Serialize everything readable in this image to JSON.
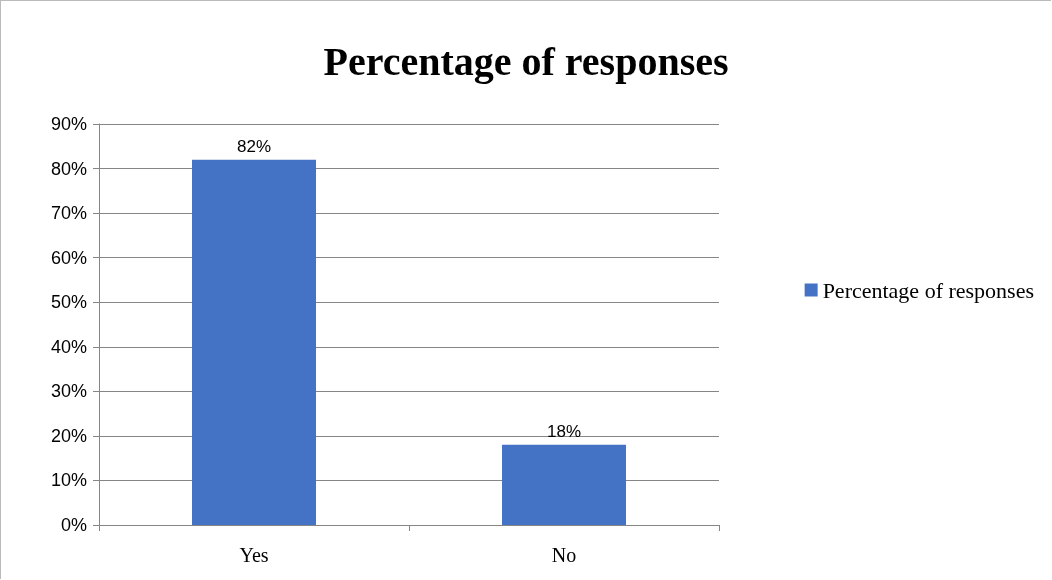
{
  "chart_data": {
    "type": "bar",
    "title": "Percentage of responses",
    "categories": [
      "Yes",
      "No"
    ],
    "series": [
      {
        "name": "Percentage of responses",
        "color": "#4472c4",
        "values": [
          82,
          18
        ],
        "value_labels": [
          "82%",
          "18%"
        ]
      }
    ],
    "ylim": [
      0,
      90
    ],
    "yticks": [
      {
        "value": 0,
        "label": "0%"
      },
      {
        "value": 10,
        "label": "10%"
      },
      {
        "value": 20,
        "label": "20%"
      },
      {
        "value": 30,
        "label": "30%"
      },
      {
        "value": 40,
        "label": "40%"
      },
      {
        "value": 50,
        "label": "50%"
      },
      {
        "value": 60,
        "label": "60%"
      },
      {
        "value": 70,
        "label": "70%"
      },
      {
        "value": 80,
        "label": "80%"
      },
      {
        "value": 90,
        "label": "90%"
      }
    ],
    "grid": "y",
    "legend": "right"
  }
}
